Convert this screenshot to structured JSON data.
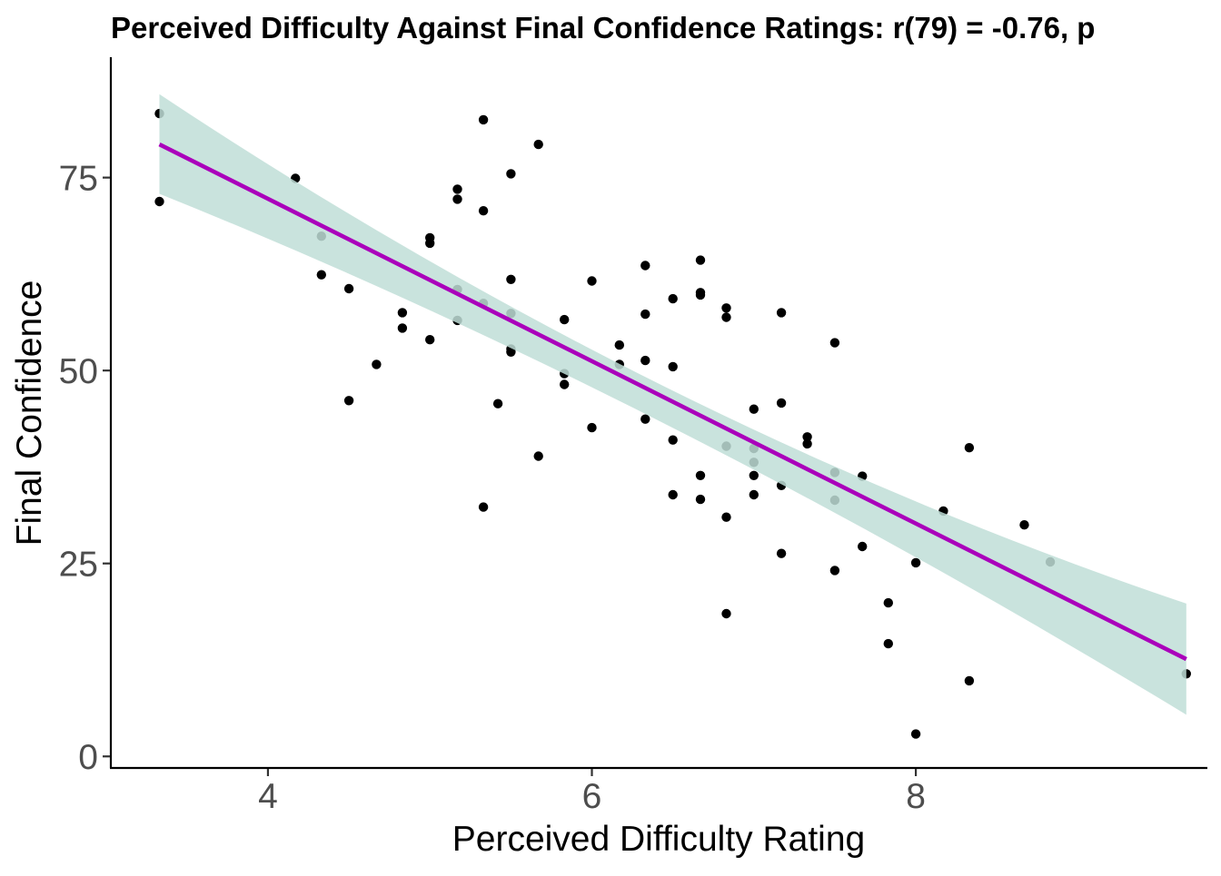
{
  "chart_data": {
    "type": "scatter",
    "title": "Perceived Difficulty Against Final Confidence Ratings: r(79) = -0.76, p",
    "xlabel": "Perceived Difficulty Rating",
    "ylabel": "Final Confidence",
    "xlim": [
      3.03,
      9.8
    ],
    "ylim": [
      -1.5,
      90.6
    ],
    "x_ticks": [
      4,
      6,
      8
    ],
    "y_ticks": [
      0,
      25,
      50,
      75
    ],
    "x_tick_labels": [
      "4",
      "6",
      "8"
    ],
    "y_tick_labels": [
      "0",
      "25",
      "50",
      "75"
    ],
    "grid": false,
    "legend": "none",
    "series": [
      {
        "kind": "points",
        "color": "#000000",
        "points": [
          [
            3.33,
            83.3
          ],
          [
            3.33,
            71.9
          ],
          [
            4.17,
            74.9
          ],
          [
            4.33,
            67.4
          ],
          [
            4.33,
            62.4
          ],
          [
            4.5,
            60.6
          ],
          [
            4.5,
            46.1
          ],
          [
            4.67,
            50.8
          ],
          [
            4.83,
            57.5
          ],
          [
            4.83,
            55.5
          ],
          [
            5.0,
            67.2
          ],
          [
            5.0,
            66.5
          ],
          [
            5.0,
            54.0
          ],
          [
            5.17,
            73.5
          ],
          [
            5.17,
            72.2
          ],
          [
            5.17,
            60.5
          ],
          [
            5.17,
            56.5
          ],
          [
            5.33,
            82.5
          ],
          [
            5.33,
            70.7
          ],
          [
            5.33,
            58.7
          ],
          [
            5.33,
            32.3
          ],
          [
            5.42,
            45.7
          ],
          [
            5.5,
            75.5
          ],
          [
            5.5,
            61.8
          ],
          [
            5.5,
            57.4
          ],
          [
            5.5,
            52.8
          ],
          [
            5.5,
            52.4
          ],
          [
            5.67,
            79.3
          ],
          [
            5.67,
            38.9
          ],
          [
            5.83,
            56.6
          ],
          [
            5.83,
            49.6
          ],
          [
            5.83,
            48.2
          ],
          [
            6.0,
            61.6
          ],
          [
            6.0,
            42.6
          ],
          [
            6.17,
            53.3
          ],
          [
            6.17,
            50.8
          ],
          [
            6.33,
            63.6
          ],
          [
            6.33,
            57.3
          ],
          [
            6.33,
            51.3
          ],
          [
            6.33,
            43.7
          ],
          [
            6.5,
            59.3
          ],
          [
            6.5,
            50.5
          ],
          [
            6.5,
            41.0
          ],
          [
            6.5,
            33.9
          ],
          [
            6.67,
            64.3
          ],
          [
            6.67,
            60.1
          ],
          [
            6.67,
            59.8
          ],
          [
            6.67,
            36.4
          ],
          [
            6.67,
            33.3
          ],
          [
            6.83,
            58.1
          ],
          [
            6.83,
            56.9
          ],
          [
            6.83,
            40.2
          ],
          [
            6.83,
            31.0
          ],
          [
            6.83,
            18.5
          ],
          [
            7.0,
            45.0
          ],
          [
            7.0,
            39.9
          ],
          [
            7.0,
            38.1
          ],
          [
            7.0,
            36.4
          ],
          [
            7.0,
            33.9
          ],
          [
            7.17,
            57.5
          ],
          [
            7.17,
            45.8
          ],
          [
            7.17,
            35.1
          ],
          [
            7.17,
            26.3
          ],
          [
            7.33,
            41.4
          ],
          [
            7.33,
            40.5
          ],
          [
            7.5,
            53.6
          ],
          [
            7.5,
            36.8
          ],
          [
            7.5,
            33.2
          ],
          [
            7.5,
            24.1
          ],
          [
            7.67,
            36.3
          ],
          [
            7.67,
            27.2
          ],
          [
            7.83,
            19.9
          ],
          [
            7.83,
            14.6
          ],
          [
            8.0,
            25.1
          ],
          [
            8.0,
            2.9
          ],
          [
            8.17,
            31.8
          ],
          [
            8.33,
            40.0
          ],
          [
            8.33,
            9.8
          ],
          [
            8.67,
            30.0
          ],
          [
            8.83,
            25.2
          ],
          [
            9.67,
            10.7
          ]
        ]
      },
      {
        "kind": "fit",
        "color": "#aa00bb",
        "x_range": [
          3.33,
          9.67
        ],
        "y_range": [
          79.3,
          12.6
        ]
      },
      {
        "kind": "confidence_band",
        "color": "#bfded7",
        "x": [
          3.33,
          6.42,
          9.67
        ],
        "upper": [
          85.8,
          47.8,
          19.8
        ],
        "lower": [
          72.9,
          43.0,
          5.4
        ]
      }
    ]
  }
}
